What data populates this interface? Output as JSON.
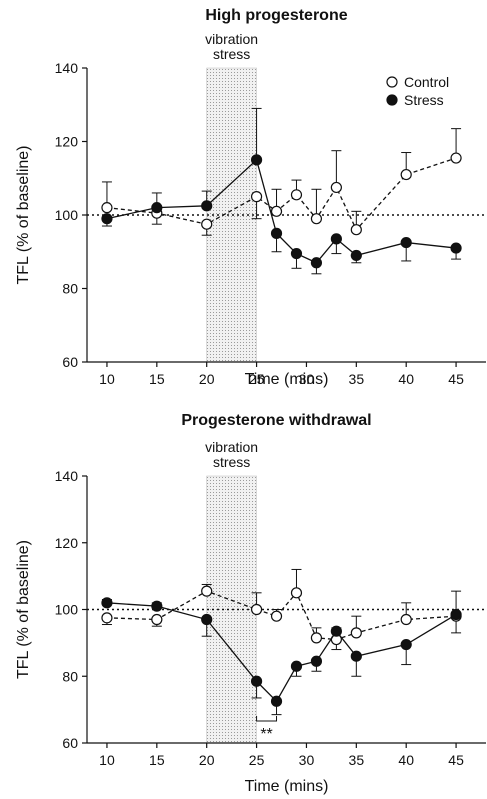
{
  "chart_data": [
    {
      "type": "line",
      "title": "High progesterone",
      "xlabel": "Time (mins)",
      "ylabel": "TFL (% of baseline)",
      "xlim": [
        8,
        48
      ],
      "ylim": [
        60,
        140
      ],
      "xticks": [
        10,
        15,
        20,
        25,
        30,
        35,
        40,
        45
      ],
      "yticks": [
        60,
        80,
        100,
        120,
        140
      ],
      "reference_line": 100,
      "shaded_region": {
        "x": [
          20,
          25
        ],
        "label_line1": "vibration",
        "label_line2": "stress"
      },
      "legend_position": "top-right",
      "series": [
        {
          "name": "Control",
          "marker": "open-circle",
          "line": "dashed",
          "x": [
            10,
            15,
            20,
            25,
            27,
            29,
            31,
            33,
            35,
            40,
            45
          ],
          "y": [
            102,
            100.5,
            97.5,
            105,
            101,
            105.5,
            99,
            107.5,
            96,
            111,
            115.5
          ],
          "err": [
            7,
            3,
            3,
            6,
            6,
            4,
            8,
            10,
            5,
            6,
            8
          ]
        },
        {
          "name": "Stress",
          "marker": "filled-circle",
          "line": "solid",
          "x": [
            10,
            15,
            20,
            25,
            27,
            29,
            31,
            33,
            35,
            40,
            45
          ],
          "y": [
            99,
            102,
            102.5,
            115,
            95,
            89.5,
            87,
            93.5,
            89,
            92.5,
            91
          ],
          "err": [
            2,
            4,
            4,
            14,
            5,
            4,
            3,
            4,
            2,
            5,
            3
          ]
        }
      ]
    },
    {
      "type": "line",
      "title": "Progesterone withdrawal",
      "xlabel": "Time (mins)",
      "ylabel": "TFL (% of baseline)",
      "xlim": [
        8,
        48
      ],
      "ylim": [
        60,
        140
      ],
      "xticks": [
        10,
        15,
        20,
        25,
        30,
        35,
        40,
        45
      ],
      "yticks": [
        60,
        80,
        100,
        120,
        140
      ],
      "reference_line": 100,
      "shaded_region": {
        "x": [
          20,
          25
        ],
        "label_line1": "vibration",
        "label_line2": "stress"
      },
      "significance": {
        "label": "**",
        "x": [
          25,
          27
        ]
      },
      "series": [
        {
          "name": "Control",
          "marker": "open-circle",
          "line": "dashed",
          "x": [
            10,
            15,
            20,
            25,
            27,
            29,
            31,
            33,
            35,
            40,
            45
          ],
          "y": [
            97.5,
            97,
            105.5,
            100,
            98,
            105,
            91.5,
            91,
            93,
            97,
            98
          ],
          "err": [
            2,
            2,
            2,
            5,
            2,
            7,
            3,
            3,
            5,
            5,
            5
          ]
        },
        {
          "name": "Stress",
          "marker": "filled-circle",
          "line": "solid",
          "x": [
            10,
            15,
            20,
            25,
            27,
            29,
            31,
            33,
            35,
            40,
            45
          ],
          "y": [
            102,
            101,
            97,
            78.5,
            72.5,
            83,
            84.5,
            93.5,
            86,
            89.5,
            98.5
          ],
          "err": [
            1,
            1,
            5,
            5,
            4,
            3,
            3,
            1,
            6,
            6,
            7
          ]
        }
      ]
    }
  ]
}
